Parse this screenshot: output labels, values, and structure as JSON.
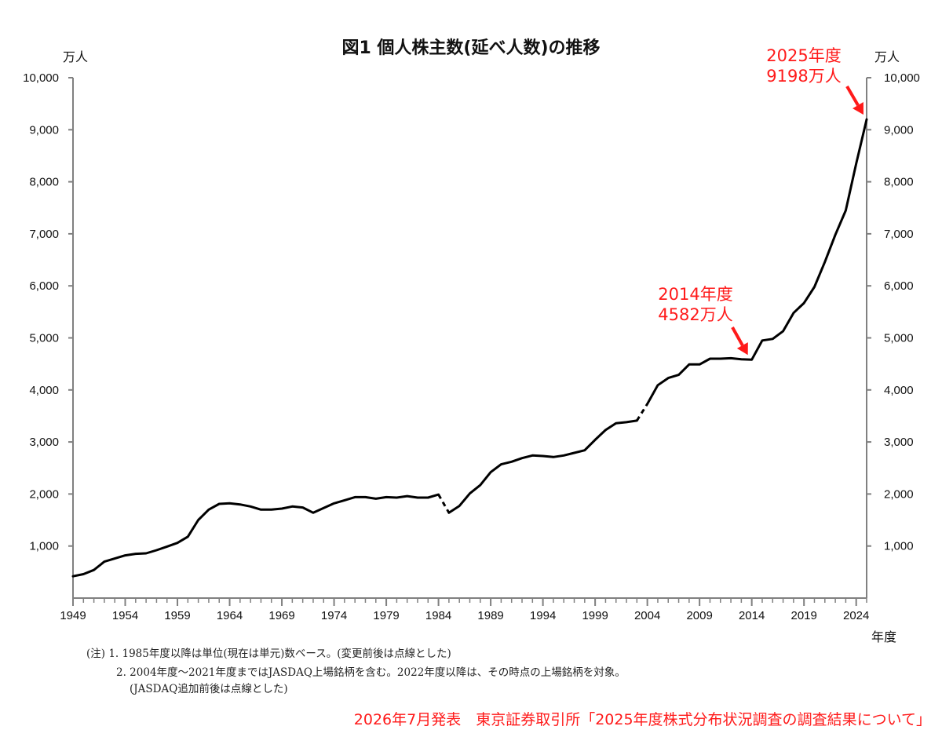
{
  "chart_data": {
    "type": "line",
    "title": "図1 個人株主数(延べ人数)の推移",
    "y_unit_left": "万人",
    "y_unit_right": "万人",
    "xlabel": "年度",
    "ylim": [
      0,
      10000
    ],
    "xlim": [
      1949,
      2025
    ],
    "y_ticks": [
      "1,000",
      "2,000",
      "3,000",
      "4,000",
      "5,000",
      "6,000",
      "7,000",
      "8,000",
      "9,000",
      "10,000"
    ],
    "x_ticks": [
      "1949",
      "1954",
      "1959",
      "1964",
      "1969",
      "1974",
      "1979",
      "1984",
      "1989",
      "1994",
      "1999",
      "2004",
      "2009",
      "2014",
      "2019",
      "2024"
    ],
    "series": [
      {
        "x": [
          1949,
          1950,
          1951,
          1952,
          1953,
          1954,
          1955,
          1956,
          1957,
          1958,
          1959,
          1960,
          1961,
          1962,
          1963,
          1964,
          1965,
          1966,
          1967,
          1968,
          1969,
          1970,
          1971,
          1972,
          1973,
          1974,
          1975,
          1976,
          1977,
          1978,
          1979,
          1980,
          1981,
          1982,
          1983,
          1984,
          1985,
          1986,
          1987,
          1988,
          1989,
          1990,
          1991,
          1992,
          1993,
          1994,
          1995,
          1996,
          1997,
          1998,
          1999,
          2000,
          2001,
          2002,
          2003,
          2004,
          2005,
          2006,
          2007,
          2008,
          2009,
          2010,
          2011,
          2012,
          2013,
          2014,
          2015,
          2016,
          2017,
          2018,
          2019,
          2020,
          2021,
          2022,
          2023,
          2024,
          2025
        ],
        "y": [
          420,
          460,
          540,
          700,
          760,
          820,
          850,
          860,
          920,
          990,
          1060,
          1180,
          1500,
          1700,
          1810,
          1820,
          1800,
          1760,
          1700,
          1700,
          1720,
          1760,
          1740,
          1640,
          1730,
          1820,
          1880,
          1940,
          1940,
          1910,
          1940,
          1930,
          1960,
          1930,
          1930,
          1990,
          1640,
          1770,
          2010,
          2170,
          2420,
          2570,
          2620,
          2690,
          2740,
          2730,
          2710,
          2740,
          2790,
          2840,
          3040,
          3230,
          3360,
          3380,
          3410,
          3730,
          4090,
          4230,
          4290,
          4490,
          4490,
          4600,
          4600,
          4610,
          4590,
          4582,
          4950,
          4980,
          5130,
          5480,
          5670,
          5980,
          6460,
          6980,
          7450,
          8350,
          9198
        ]
      }
    ],
    "dashed_segments": [
      [
        1984,
        1985
      ],
      [
        2003,
        2004
      ]
    ],
    "annotations": [
      {
        "x": 2014,
        "y": 4582,
        "line1": "2014年度",
        "line2": "4582万人"
      },
      {
        "x": 2025,
        "y": 9198,
        "line1": "2025年度",
        "line2": "9198万人"
      }
    ]
  },
  "notes": [
    "(注) 1. 1985年度以降は単位(現在は単元)数ベース。(変更前後は点線とした)",
    "2. 2004年度～2021年度まではJASDAQ上場銘柄を含む。2022年度以降は、その時点の上場銘柄を対象。",
    "(JASDAQ追加前後は点線とした)"
  ],
  "source": "2026年7月発表　東京証券取引所「2025年度株式分布状況調査の調査結果について」",
  "colors": {
    "line": "#000000",
    "annotation": "#ff1a1a",
    "axis": "#808080"
  }
}
